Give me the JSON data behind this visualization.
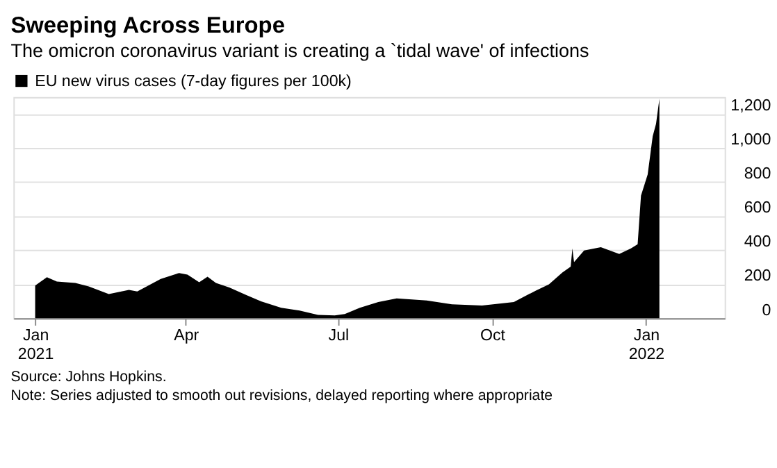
{
  "chart_data": {
    "type": "area",
    "title": "Sweeping Across Europe",
    "subtitle": "The omicron coronavirus variant is creating a `tidal wave' of infections",
    "x": [
      "2021-01-01",
      "2021-01-08",
      "2021-01-14",
      "2021-01-25",
      "2021-02-02",
      "2021-02-14",
      "2021-02-26",
      "2021-03-03",
      "2021-03-17",
      "2021-03-28",
      "2021-04-02",
      "2021-04-09",
      "2021-04-14",
      "2021-04-19",
      "2021-04-27",
      "2021-05-07",
      "2021-05-16",
      "2021-05-28",
      "2021-06-08",
      "2021-06-19",
      "2021-06-29",
      "2021-07-05",
      "2021-07-14",
      "2021-07-25",
      "2021-08-05",
      "2021-08-23",
      "2021-09-07",
      "2021-09-25",
      "2021-10-14",
      "2021-10-27",
      "2021-11-04",
      "2021-11-12",
      "2021-11-17",
      "2021-11-18",
      "2021-11-19",
      "2021-11-25",
      "2021-12-05",
      "2021-12-16",
      "2021-12-23",
      "2021-12-27",
      "2021-12-29",
      "2022-01-02",
      "2022-01-05",
      "2022-01-07",
      "2022-01-09"
    ],
    "series": [
      {
        "name": "EU new virus cases (7-day figures per 100k)",
        "color": "#000000",
        "values": [
          192,
          241,
          216,
          207,
          187,
          142,
          167,
          157,
          231,
          266,
          256,
          211,
          244,
          207,
          181,
          137,
          99,
          62,
          45,
          20,
          17,
          25,
          62,
          95,
          117,
          104,
          82,
          75,
          95,
          162,
          199,
          269,
          303,
          410,
          330,
          398,
          418,
          378,
          410,
          435,
          721,
          845,
          1069,
          1143,
          1290
        ]
      }
    ],
    "xlim": [
      "2020-12-19",
      "2022-02-17"
    ],
    "xticks": [
      {
        "value": "2021-01-01",
        "label": "Jan 2021"
      },
      {
        "value": "2021-04-01",
        "label": "Apr"
      },
      {
        "value": "2021-07-01",
        "label": "Jul"
      },
      {
        "value": "2021-10-01",
        "label": "Oct"
      },
      {
        "value": "2022-01-01",
        "label": "Jan 2022"
      }
    ],
    "ylim": [
      0,
      1300
    ],
    "yticks": [
      {
        "value": 0,
        "label": "0"
      },
      {
        "value": 200,
        "label": "200"
      },
      {
        "value": 400,
        "label": "400"
      },
      {
        "value": 600,
        "label": "600"
      },
      {
        "value": 800,
        "label": "800"
      },
      {
        "value": 1000,
        "label": "1,000"
      },
      {
        "value": 1200,
        "label": "1,200"
      }
    ],
    "grid": "y",
    "legend": "top left",
    "annotations": [
      "Source: Johns Hopkins.",
      "Note: Series adjusted to smooth out revisions, delayed reporting where appropriate"
    ]
  }
}
